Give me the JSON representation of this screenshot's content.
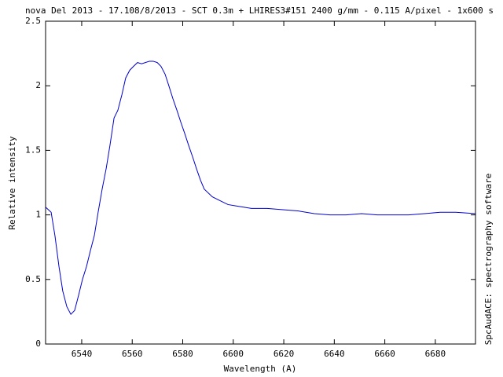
{
  "chart_data": {
    "type": "line",
    "title": "nova Del 2013 - 17.108/8/2013 - SCT 0.3m + LHIRES3#151 2400 g/mm - 0.115 A/pixel - 1x600 s",
    "x_label": "Wavelength (A)",
    "y_label": "Relative intensity",
    "side_note": "SpcAudACE: spectrography software",
    "x": [
      6525.7,
      6527.9,
      6529.4,
      6531.0,
      6532.5,
      6534.1,
      6535.7,
      6537.2,
      6538.8,
      6540.3,
      6541.9,
      6543.4,
      6545.0,
      6546.5,
      6548.1,
      6549.7,
      6551.2,
      6552.8,
      6554.3,
      6555.9,
      6557.4,
      6559.0,
      6560.5,
      6562.1,
      6563.7,
      6565.2,
      6566.8,
      6568.3,
      6569.9,
      6571.4,
      6573.0,
      6574.5,
      6576.1,
      6577.7,
      6579.2,
      6580.8,
      6582.3,
      6583.9,
      6585.4,
      6587.0,
      6588.5,
      6591.7,
      6594.8,
      6597.9,
      6601.0,
      6607.2,
      6613.4,
      6619.7,
      6625.9,
      6632.1,
      6638.3,
      6644.6,
      6650.8,
      6657.0,
      6663.3,
      6669.4,
      6675.7,
      6681.9,
      6688.1,
      6695.9
    ],
    "series": [
      {
        "color": "#0000cc",
        "values": [
          1.06,
          1.02,
          0.84,
          0.6,
          0.41,
          0.29,
          0.23,
          0.26,
          0.38,
          0.5,
          0.6,
          0.72,
          0.84,
          1.02,
          1.2,
          1.36,
          1.54,
          1.75,
          1.81,
          1.93,
          2.06,
          2.12,
          2.15,
          2.18,
          2.17,
          2.18,
          2.19,
          2.19,
          2.18,
          2.15,
          2.09,
          2.0,
          1.9,
          1.81,
          1.72,
          1.63,
          1.54,
          1.45,
          1.36,
          1.27,
          1.2,
          1.14,
          1.11,
          1.08,
          1.07,
          1.05,
          1.05,
          1.04,
          1.03,
          1.01,
          1.0,
          1.0,
          1.01,
          1.0,
          1.0,
          1.0,
          1.01,
          1.02,
          1.02,
          1.01
        ]
      }
    ],
    "xlim": [
      6525.7,
      6695.9
    ],
    "ylim": [
      0,
      2.5
    ],
    "xticks": [
      6540,
      6560,
      6580,
      6600,
      6620,
      6640,
      6660,
      6680
    ],
    "yticks": [
      0,
      0.5,
      1,
      1.5,
      2,
      2.5
    ]
  }
}
